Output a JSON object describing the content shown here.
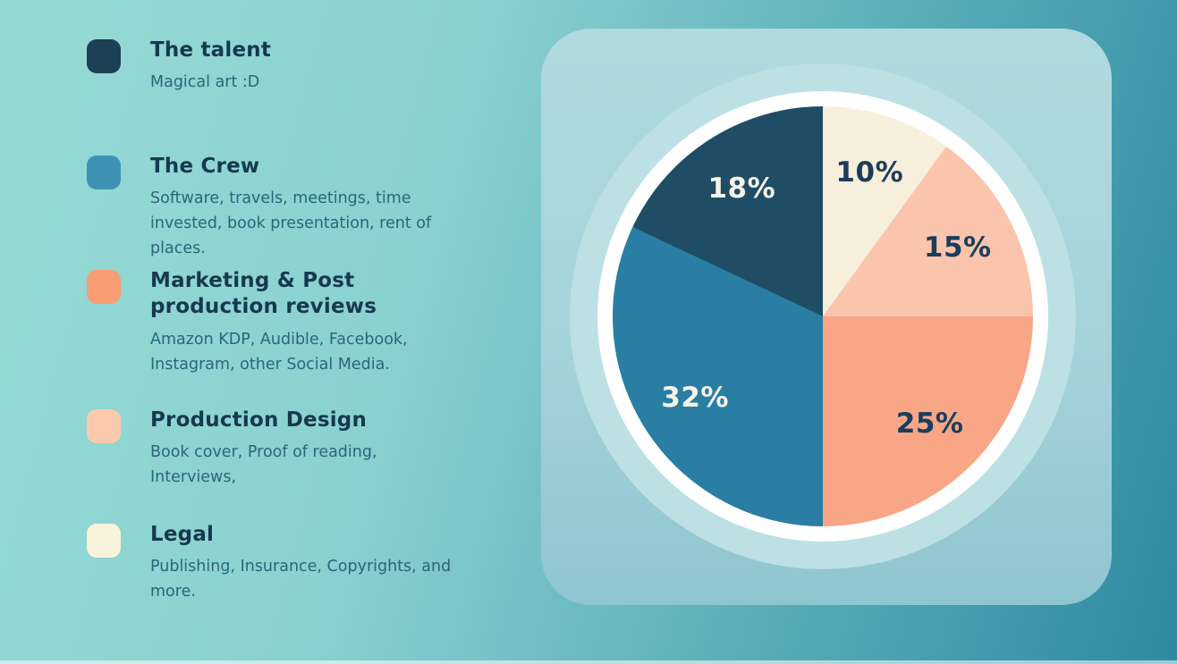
{
  "page": {
    "colors": {
      "bg_left": "#95d9d4",
      "bg_mid": "#8ad2d0",
      "bg_right": "#2e8aa2",
      "card_top": "#b0dade",
      "card_bottom": "#8fc5cf",
      "halo": "#bce0e4",
      "ring": "#ffffff",
      "title_text": "#16394f",
      "desc_text": "#2e6478"
    }
  },
  "legend": {
    "items": [
      {
        "title": "The talent",
        "description": "Magical art :D",
        "swatch_color": "#1c4054"
      },
      {
        "title": "The Crew",
        "description": "Software, travels, meetings, time invested, book presentation, rent of places.",
        "swatch_color": "#3e93b5"
      },
      {
        "title": "Marketing & Post production reviews",
        "description": "Amazon KDP, Audible, Facebook, Instagram, other Social Media.",
        "swatch_color": "#f99d75"
      },
      {
        "title": "Production Design",
        "description": "Book cover, Proof of reading, Interviews,",
        "swatch_color": "#fcc9ad"
      },
      {
        "title": "Legal",
        "description": "Publishing, Insurance, Copyrights, and more.",
        "swatch_color": "#faf2dc"
      }
    ]
  },
  "chart_data": {
    "type": "pie",
    "title": "",
    "start_angle_deg": 0,
    "direction": "clockwise",
    "value_suffix": "%",
    "categories": [
      "Legal",
      "Production Design",
      "Marketing & Post production reviews",
      "The Crew",
      "The talent"
    ],
    "values": [
      10,
      15,
      25,
      32,
      18
    ],
    "slices": [
      {
        "label": "Legal",
        "value": 10,
        "display": "10%",
        "color": "#f8eedc",
        "label_color": "#1b3d5c"
      },
      {
        "label": "Production Design",
        "value": 15,
        "display": "15%",
        "color": "#fbc4ac",
        "label_color": "#1b3d5c"
      },
      {
        "label": "Marketing & Post production reviews",
        "value": 25,
        "display": "25%",
        "color": "#f9a686",
        "label_color": "#1b3d5c"
      },
      {
        "label": "The Crew",
        "value": 32,
        "display": "32%",
        "color": "#2a7ea3",
        "label_color": "#f6f3e8"
      },
      {
        "label": "The talent",
        "value": 18,
        "display": "18%",
        "color": "#1f4d66",
        "label_color": "#f6f3e8"
      }
    ],
    "legend_position": "left",
    "grid": false
  }
}
